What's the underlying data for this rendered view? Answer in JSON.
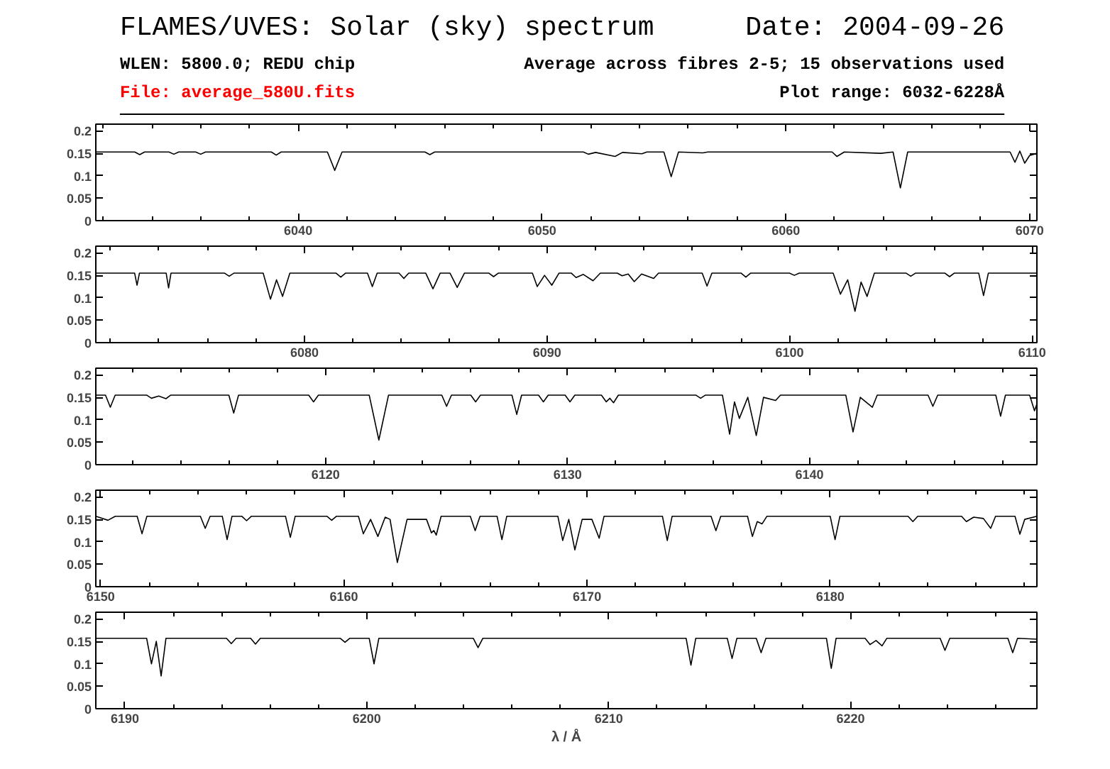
{
  "chart_data": [
    {
      "type": "line",
      "title": "FLAMES/UVES: Solar (sky) spectrum",
      "annotations": [
        "Date: 2004-09-26",
        "WLEN: 5800.0; REDU chip",
        "File: average_580U.fits",
        "Average across fibres 2-5; 15 observations used",
        "Plot range: 6032-6228Å"
      ],
      "color": "#000000",
      "xlim": [
        6031.7,
        6070.3
      ],
      "ylim": [
        0,
        0.215
      ],
      "yticks": [
        0,
        0.05,
        0.1,
        0.15,
        0.2
      ],
      "xticks": [
        {
          "value": 6032,
          "label": null
        },
        {
          "value": 6034,
          "label": null
        },
        {
          "value": 6036,
          "label": null
        },
        {
          "value": 6038,
          "label": null
        },
        6040,
        {
          "value": 6042,
          "label": null
        },
        {
          "value": 6044,
          "label": null
        },
        {
          "value": 6046,
          "label": null
        },
        {
          "value": 6048,
          "label": null
        },
        6050,
        {
          "value": 6052,
          "label": null
        },
        {
          "value": 6054,
          "label": null
        },
        {
          "value": 6056,
          "label": null
        },
        {
          "value": 6058,
          "label": null
        },
        6060,
        {
          "value": 6062,
          "label": null
        },
        {
          "value": 6064,
          "label": null
        },
        {
          "value": 6066,
          "label": null
        },
        {
          "value": 6068,
          "label": null
        },
        6070
      ],
      "x": [
        6031.7,
        6033.3,
        6033.5,
        6033.7,
        6034.7,
        6034.9,
        6035.1,
        6035.8,
        6036.0,
        6036.2,
        6038.9,
        6039.1,
        6039.3,
        6041.2,
        6041.5,
        6041.8,
        6045.2,
        6045.4,
        6045.6,
        6051.7,
        6051.9,
        6052.2,
        6053.0,
        6053.3,
        6054.1,
        6054.3,
        6055.0,
        6055.3,
        6055.6,
        6056.6,
        6056.8,
        6061.9,
        6062.1,
        6062.4,
        6063.9,
        6064.4,
        6064.7,
        6065.0,
        6069.2,
        6069.4,
        6069.6,
        6069.8,
        6070.0,
        6070.3
      ],
      "values": [
        0.153,
        0.153,
        0.147,
        0.153,
        0.153,
        0.148,
        0.153,
        0.153,
        0.148,
        0.153,
        0.153,
        0.146,
        0.153,
        0.153,
        0.112,
        0.153,
        0.153,
        0.147,
        0.153,
        0.153,
        0.148,
        0.152,
        0.143,
        0.152,
        0.149,
        0.153,
        0.153,
        0.098,
        0.153,
        0.151,
        0.153,
        0.153,
        0.143,
        0.153,
        0.15,
        0.153,
        0.073,
        0.153,
        0.153,
        0.13,
        0.155,
        0.128,
        0.145,
        0.15
      ]
    },
    {
      "type": "line",
      "color": "#000000",
      "xlim": [
        6071.4,
        6110.2
      ],
      "ylim": [
        0,
        0.215
      ],
      "yticks": [
        0,
        0.05,
        0.1,
        0.15,
        0.2
      ],
      "xticks": [
        {
          "value": 6072,
          "label": null
        },
        {
          "value": 6074,
          "label": null
        },
        {
          "value": 6076,
          "label": null
        },
        {
          "value": 6078,
          "label": null
        },
        6080,
        {
          "value": 6082,
          "label": null
        },
        {
          "value": 6084,
          "label": null
        },
        {
          "value": 6086,
          "label": null
        },
        {
          "value": 6088,
          "label": null
        },
        6090,
        {
          "value": 6092,
          "label": null
        },
        {
          "value": 6094,
          "label": null
        },
        {
          "value": 6096,
          "label": null
        },
        {
          "value": 6098,
          "label": null
        },
        6100,
        {
          "value": 6102,
          "label": null
        },
        {
          "value": 6104,
          "label": null
        },
        {
          "value": 6106,
          "label": null
        },
        {
          "value": 6108,
          "label": null
        },
        6110
      ],
      "x": [
        6071.4,
        6073.0,
        6073.1,
        6073.2,
        6074.3,
        6074.4,
        6074.5,
        6076.7,
        6076.9,
        6077.1,
        6078.3,
        6078.6,
        6078.85,
        6079.1,
        6079.4,
        6081.3,
        6081.5,
        6081.7,
        6082.6,
        6082.8,
        6083.0,
        6083.9,
        6084.1,
        6084.3,
        6085.0,
        6085.3,
        6085.6,
        6086.0,
        6086.3,
        6086.6,
        6087.6,
        6087.8,
        6088.0,
        6089.4,
        6089.6,
        6089.9,
        6090.2,
        6090.5,
        6091.0,
        6091.2,
        6091.5,
        6091.9,
        6092.2,
        6092.9,
        6093.1,
        6093.35,
        6093.6,
        6093.9,
        6094.4,
        6094.6,
        6096.4,
        6096.6,
        6096.8,
        6098.0,
        6098.2,
        6098.4,
        6100.0,
        6100.2,
        6100.4,
        6101.8,
        6102.1,
        6102.4,
        6102.7,
        6102.95,
        6103.2,
        6103.5,
        6104.8,
        6105.0,
        6105.2,
        6106.4,
        6106.6,
        6106.8,
        6107.8,
        6108.0,
        6108.2,
        6110.2
      ],
      "values": [
        0.155,
        0.155,
        0.128,
        0.155,
        0.155,
        0.122,
        0.155,
        0.155,
        0.148,
        0.155,
        0.155,
        0.097,
        0.14,
        0.103,
        0.155,
        0.155,
        0.146,
        0.155,
        0.155,
        0.125,
        0.155,
        0.155,
        0.143,
        0.155,
        0.155,
        0.12,
        0.155,
        0.155,
        0.123,
        0.155,
        0.155,
        0.147,
        0.155,
        0.155,
        0.125,
        0.15,
        0.128,
        0.155,
        0.155,
        0.145,
        0.152,
        0.138,
        0.155,
        0.155,
        0.149,
        0.153,
        0.136,
        0.153,
        0.143,
        0.155,
        0.155,
        0.126,
        0.155,
        0.155,
        0.146,
        0.155,
        0.155,
        0.15,
        0.155,
        0.155,
        0.108,
        0.14,
        0.07,
        0.135,
        0.103,
        0.155,
        0.155,
        0.148,
        0.155,
        0.155,
        0.147,
        0.155,
        0.155,
        0.105,
        0.155,
        0.155
      ]
    },
    {
      "type": "line",
      "color": "#000000",
      "xlim": [
        6110.5,
        6149.4
      ],
      "ylim": [
        0,
        0.215
      ],
      "yticks": [
        0,
        0.05,
        0.1,
        0.15,
        0.2
      ],
      "xticks": [
        {
          "value": 6112,
          "label": null
        },
        {
          "value": 6114,
          "label": null
        },
        {
          "value": 6116,
          "label": null
        },
        {
          "value": 6118,
          "label": null
        },
        6120,
        {
          "value": 6122,
          "label": null
        },
        {
          "value": 6124,
          "label": null
        },
        {
          "value": 6126,
          "label": null
        },
        {
          "value": 6128,
          "label": null
        },
        6130,
        {
          "value": 6132,
          "label": null
        },
        {
          "value": 6134,
          "label": null
        },
        {
          "value": 6136,
          "label": null
        },
        {
          "value": 6138,
          "label": null
        },
        6140,
        {
          "value": 6142,
          "label": null
        },
        {
          "value": 6144,
          "label": null
        },
        {
          "value": 6146,
          "label": null
        },
        {
          "value": 6148,
          "label": null
        }
      ],
      "x": [
        6110.5,
        6110.9,
        6111.1,
        6111.3,
        6112.6,
        6112.8,
        6113.1,
        6113.4,
        6113.6,
        6116.0,
        6116.2,
        6116.4,
        6119.3,
        6119.5,
        6119.7,
        6121.8,
        6122.2,
        6122.6,
        6124.8,
        6125.0,
        6125.2,
        6126.0,
        6126.2,
        6126.4,
        6127.7,
        6127.9,
        6128.1,
        6128.8,
        6129.0,
        6129.2,
        6129.9,
        6130.1,
        6130.3,
        6131.4,
        6131.6,
        6131.75,
        6131.9,
        6132.1,
        6135.3,
        6135.5,
        6135.7,
        6136.4,
        6136.7,
        6136.9,
        6137.1,
        6137.45,
        6137.8,
        6138.1,
        6138.6,
        6138.8,
        6141.5,
        6141.8,
        6142.1,
        6142.6,
        6142.8,
        6144.9,
        6145.1,
        6145.3,
        6147.7,
        6147.9,
        6148.1,
        6149.1,
        6149.3,
        6149.4
      ],
      "values": [
        0.155,
        0.155,
        0.128,
        0.155,
        0.155,
        0.148,
        0.153,
        0.147,
        0.155,
        0.155,
        0.115,
        0.155,
        0.155,
        0.14,
        0.155,
        0.155,
        0.055,
        0.155,
        0.155,
        0.13,
        0.155,
        0.155,
        0.14,
        0.155,
        0.155,
        0.112,
        0.155,
        0.155,
        0.14,
        0.155,
        0.155,
        0.14,
        0.155,
        0.155,
        0.14,
        0.148,
        0.138,
        0.155,
        0.155,
        0.148,
        0.155,
        0.155,
        0.068,
        0.14,
        0.103,
        0.15,
        0.065,
        0.15,
        0.143,
        0.155,
        0.155,
        0.073,
        0.15,
        0.128,
        0.155,
        0.155,
        0.13,
        0.155,
        0.155,
        0.108,
        0.155,
        0.155,
        0.12,
        0.135
      ]
    },
    {
      "type": "line",
      "color": "#000000",
      "xlim": [
        6149.8,
        6188.5
      ],
      "ylim": [
        0,
        0.215
      ],
      "yticks": [
        0,
        0.05,
        0.1,
        0.15,
        0.2
      ],
      "xticks": [
        6150,
        {
          "value": 6152,
          "label": null
        },
        {
          "value": 6154,
          "label": null
        },
        {
          "value": 6156,
          "label": null
        },
        {
          "value": 6158,
          "label": null
        },
        6160,
        {
          "value": 6162,
          "label": null
        },
        {
          "value": 6164,
          "label": null
        },
        {
          "value": 6166,
          "label": null
        },
        {
          "value": 6168,
          "label": null
        },
        6170,
        {
          "value": 6172,
          "label": null
        },
        {
          "value": 6174,
          "label": null
        },
        {
          "value": 6176,
          "label": null
        },
        {
          "value": 6178,
          "label": null
        },
        6180,
        {
          "value": 6182,
          "label": null
        },
        {
          "value": 6184,
          "label": null
        },
        {
          "value": 6186,
          "label": null
        },
        {
          "value": 6188,
          "label": null
        }
      ],
      "x": [
        6149.8,
        6150.3,
        6150.6,
        6151.5,
        6151.7,
        6151.9,
        6154.1,
        6154.3,
        6154.5,
        6155.0,
        6155.2,
        6155.4,
        6155.8,
        6156.0,
        6156.2,
        6157.6,
        6157.8,
        6158.0,
        6159.3,
        6159.5,
        6159.7,
        6160.6,
        6160.8,
        6161.1,
        6161.4,
        6161.7,
        6161.9,
        6162.2,
        6162.6,
        6163.4,
        6163.6,
        6163.7,
        6163.8,
        6164.0,
        6165.2,
        6165.4,
        6165.6,
        6166.3,
        6166.5,
        6166.7,
        6168.8,
        6169.0,
        6169.25,
        6169.5,
        6169.8,
        6170.2,
        6170.5,
        6170.7,
        6173.1,
        6173.3,
        6173.5,
        6175.1,
        6175.3,
        6175.5,
        6176.6,
        6176.8,
        6177.0,
        6177.2,
        6177.4,
        6180.0,
        6180.2,
        6180.4,
        6183.2,
        6183.4,
        6183.6,
        6185.4,
        6185.6,
        6185.9,
        6186.3,
        6186.6,
        6186.8,
        6187.6,
        6187.8,
        6188.0,
        6188.5
      ],
      "values": [
        0.157,
        0.148,
        0.157,
        0.157,
        0.118,
        0.157,
        0.157,
        0.13,
        0.157,
        0.157,
        0.105,
        0.157,
        0.157,
        0.147,
        0.157,
        0.157,
        0.11,
        0.157,
        0.157,
        0.148,
        0.157,
        0.157,
        0.118,
        0.15,
        0.112,
        0.155,
        0.15,
        0.054,
        0.15,
        0.15,
        0.12,
        0.125,
        0.115,
        0.157,
        0.157,
        0.125,
        0.157,
        0.157,
        0.105,
        0.157,
        0.157,
        0.103,
        0.15,
        0.082,
        0.15,
        0.15,
        0.108,
        0.157,
        0.157,
        0.103,
        0.157,
        0.157,
        0.125,
        0.157,
        0.157,
        0.112,
        0.145,
        0.14,
        0.157,
        0.157,
        0.105,
        0.157,
        0.157,
        0.145,
        0.157,
        0.157,
        0.145,
        0.155,
        0.152,
        0.13,
        0.157,
        0.157,
        0.117,
        0.15,
        0.157
      ]
    },
    {
      "type": "line",
      "xlabel": "λ / Å",
      "color": "#000000",
      "xlim": [
        6188.8,
        6227.7
      ],
      "ylim": [
        0,
        0.215
      ],
      "yticks": [
        0,
        0.05,
        0.1,
        0.15,
        0.2
      ],
      "xticks": [
        6190,
        {
          "value": 6192,
          "label": null
        },
        {
          "value": 6194,
          "label": null
        },
        {
          "value": 6196,
          "label": null
        },
        {
          "value": 6198,
          "label": null
        },
        6200,
        {
          "value": 6202,
          "label": null
        },
        {
          "value": 6204,
          "label": null
        },
        {
          "value": 6206,
          "label": null
        },
        {
          "value": 6208,
          "label": null
        },
        6210,
        {
          "value": 6212,
          "label": null
        },
        {
          "value": 6214,
          "label": null
        },
        {
          "value": 6216,
          "label": null
        },
        {
          "value": 6218,
          "label": null
        },
        6220,
        {
          "value": 6222,
          "label": null
        },
        {
          "value": 6224,
          "label": null
        },
        {
          "value": 6226,
          "label": null
        }
      ],
      "x": [
        6188.8,
        6190.9,
        6191.1,
        6191.3,
        6191.5,
        6191.7,
        6194.2,
        6194.4,
        6194.6,
        6195.2,
        6195.4,
        6195.6,
        6198.9,
        6199.1,
        6199.3,
        6200.1,
        6200.3,
        6200.5,
        6204.4,
        6204.6,
        6204.8,
        6213.2,
        6213.4,
        6213.6,
        6214.9,
        6215.1,
        6215.3,
        6216.1,
        6216.3,
        6216.5,
        6219.0,
        6219.2,
        6219.4,
        6220.6,
        6220.8,
        6221.05,
        6221.3,
        6221.5,
        6223.7,
        6223.9,
        6224.1,
        6226.5,
        6226.7,
        6226.9,
        6227.7
      ],
      "values": [
        0.157,
        0.157,
        0.1,
        0.15,
        0.073,
        0.157,
        0.157,
        0.145,
        0.157,
        0.157,
        0.144,
        0.157,
        0.157,
        0.148,
        0.157,
        0.157,
        0.1,
        0.157,
        0.157,
        0.136,
        0.157,
        0.157,
        0.097,
        0.157,
        0.157,
        0.112,
        0.157,
        0.157,
        0.125,
        0.157,
        0.157,
        0.09,
        0.157,
        0.157,
        0.143,
        0.152,
        0.14,
        0.157,
        0.157,
        0.13,
        0.157,
        0.157,
        0.125,
        0.157,
        0.155
      ]
    }
  ]
}
